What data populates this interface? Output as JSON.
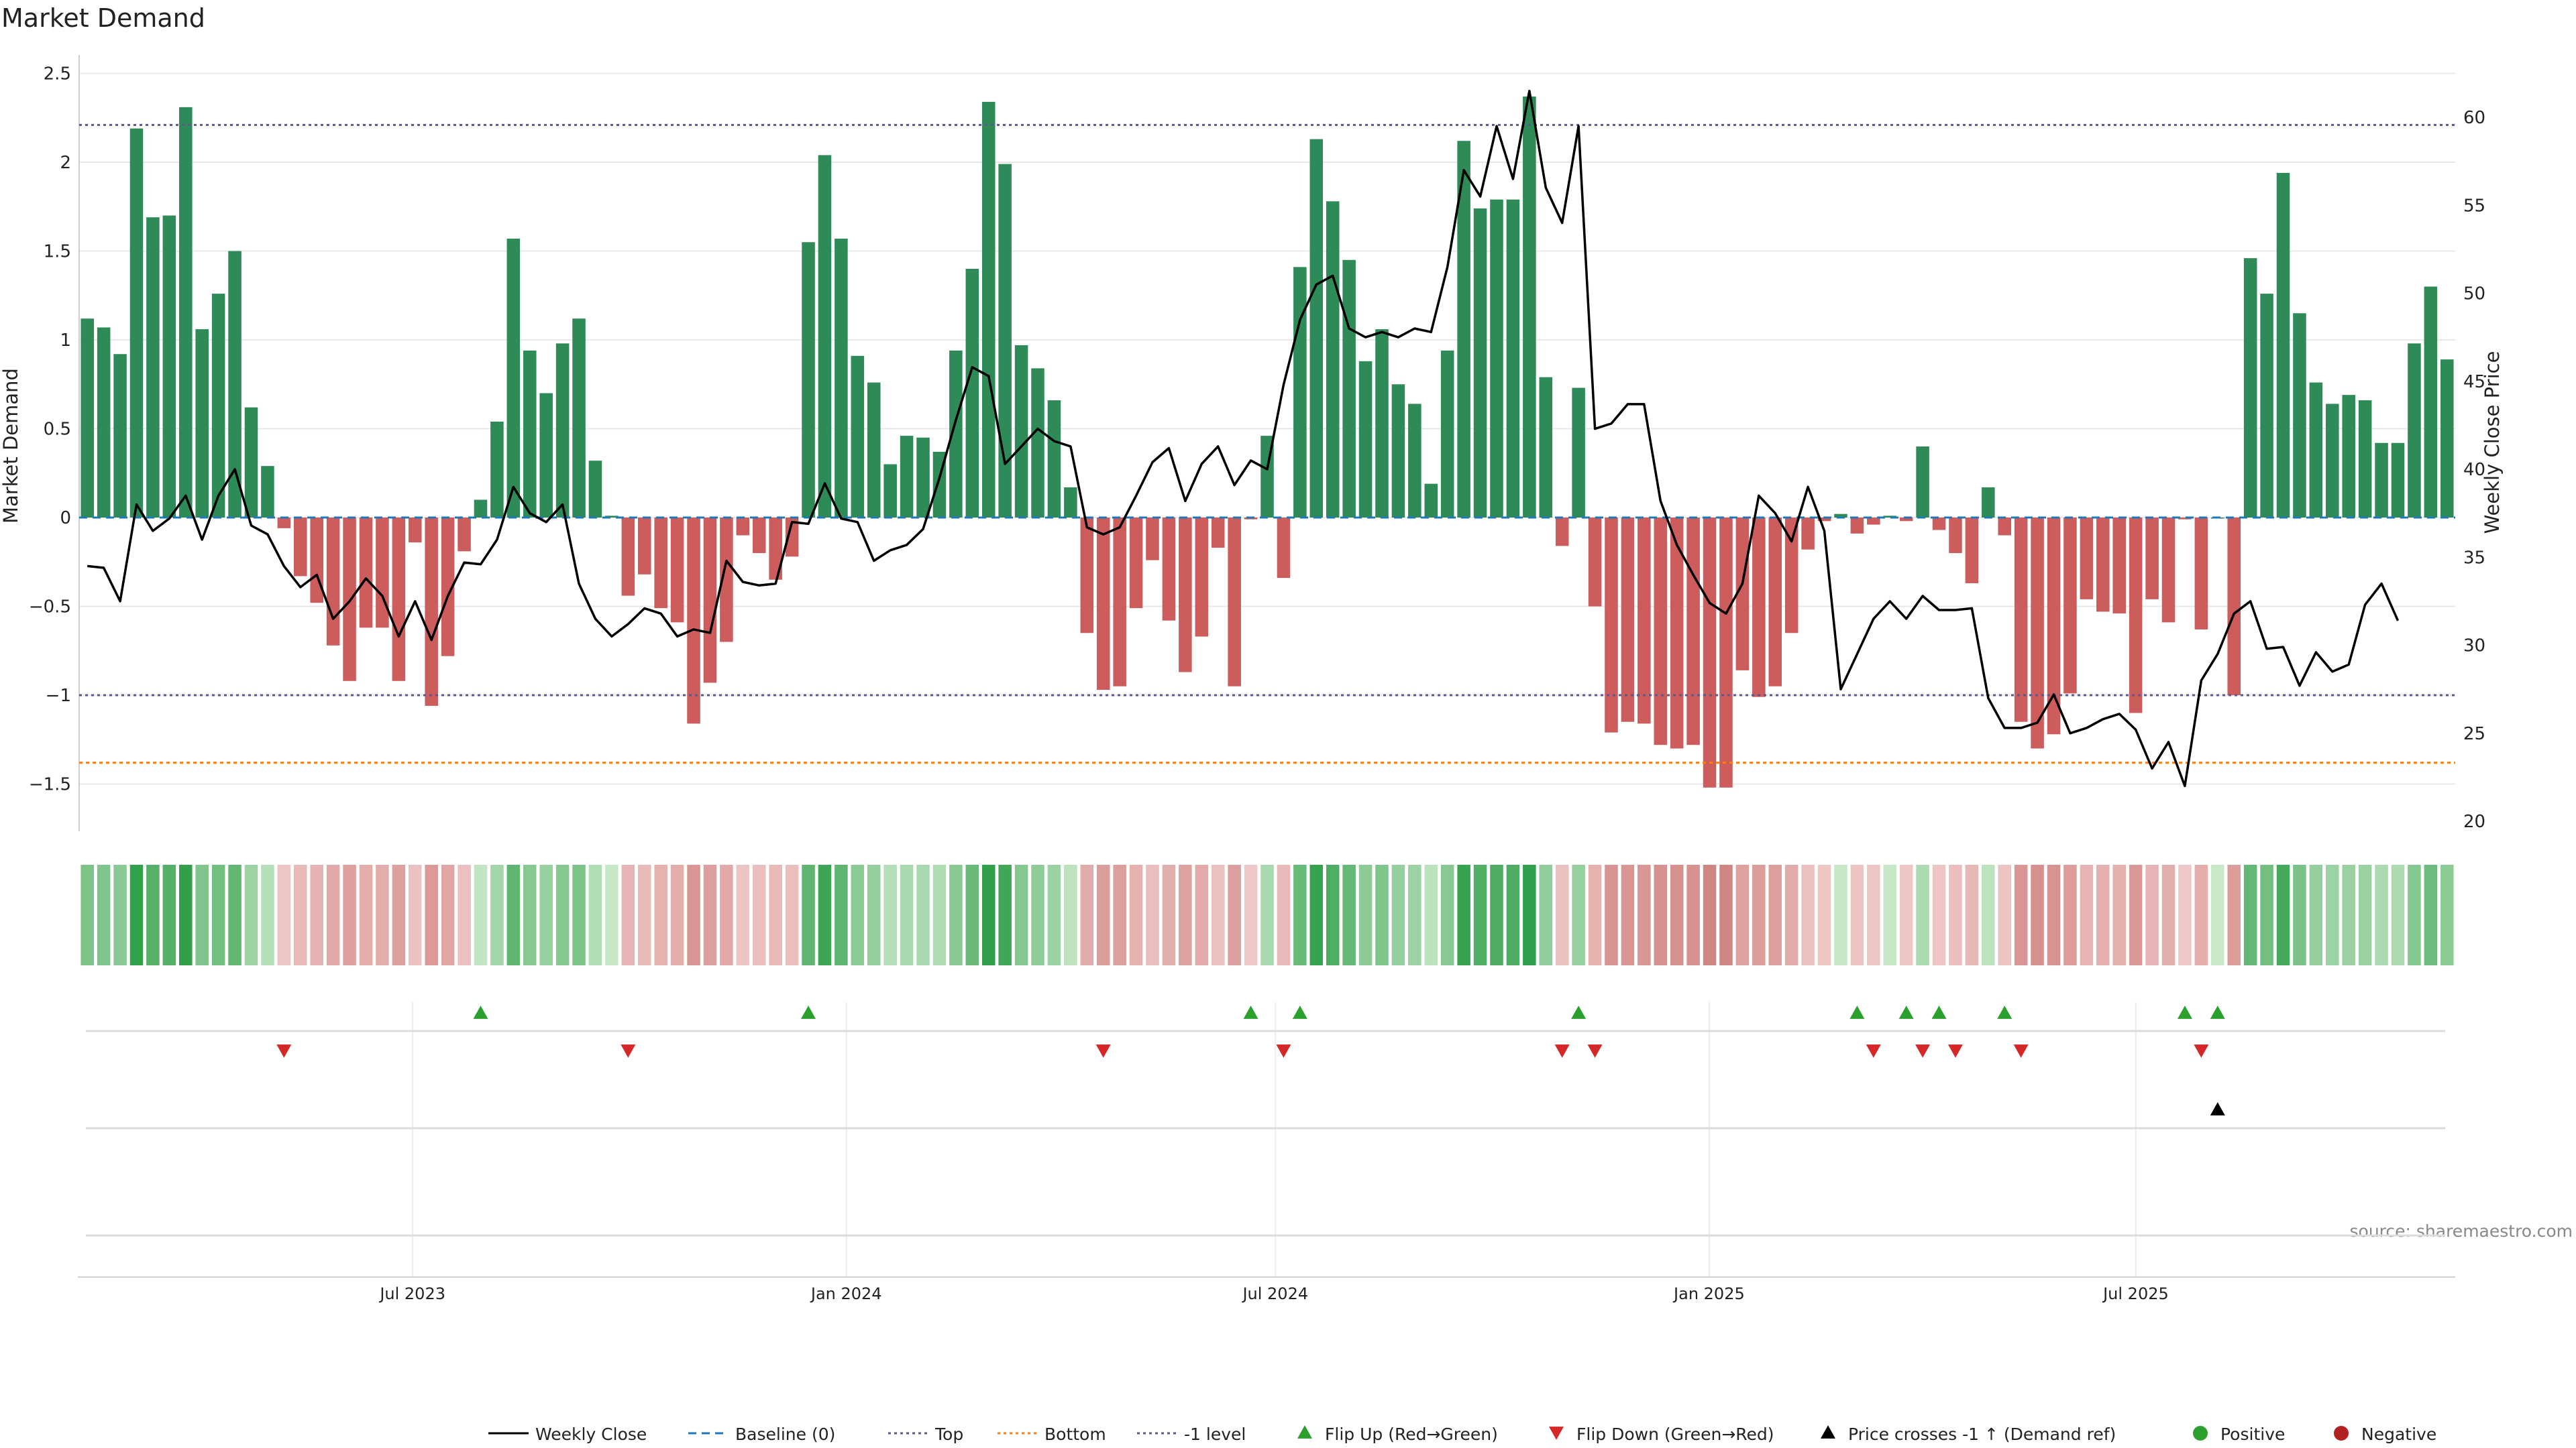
{
  "chart_data": {
    "type": "bar",
    "title": "Market Demand",
    "ylabel": "Market Demand",
    "y2label": "Weekly Close Price",
    "ylim": [
      -1.75,
      2.5
    ],
    "y2lim": [
      20,
      62
    ],
    "yticks": [
      "2.5",
      "2",
      "1.5",
      "1",
      "0.5",
      "0",
      "−0.5",
      "−1",
      "−1.5"
    ],
    "y2ticks": [
      "60",
      "55",
      "50",
      "45",
      "40",
      "35",
      "30",
      "25",
      "20"
    ],
    "x_start": "2023-02-13",
    "x_end": "2025-11-10",
    "date_ticks": [
      {
        "date": "2023-07-01",
        "label": "Jul 2023"
      },
      {
        "date": "2024-01-01",
        "label": "Jan 2024"
      },
      {
        "date": "2024-07-01",
        "label": "Jul 2024"
      },
      {
        "date": "2025-01-01",
        "label": "Jan 2025"
      },
      {
        "date": "2025-07-01",
        "label": "Jul 2025"
      }
    ],
    "reference_lines": {
      "top": 2.21,
      "minus_one": -1.0,
      "bottom": -1.38,
      "baseline": 0
    },
    "demand": [
      1.12,
      1.07,
      0.92,
      2.19,
      1.69,
      1.7,
      2.31,
      1.06,
      1.26,
      1.5,
      0.62,
      0.29,
      -0.06,
      -0.33,
      -0.48,
      -0.72,
      -0.92,
      -0.62,
      -0.62,
      -0.92,
      -0.14,
      -1.06,
      -0.78,
      -0.19,
      0.1,
      0.54,
      1.57,
      0.94,
      0.7,
      0.98,
      1.12,
      0.32,
      0.01,
      -0.44,
      -0.32,
      -0.51,
      -0.59,
      -1.16,
      -0.93,
      -0.7,
      -0.1,
      -0.2,
      -0.35,
      -0.22,
      1.55,
      2.04,
      1.57,
      0.91,
      0.76,
      0.3,
      0.46,
      0.45,
      0.37,
      0.94,
      1.4,
      2.34,
      1.99,
      0.97,
      0.84,
      0.66,
      0.17,
      -0.65,
      -0.97,
      -0.95,
      -0.51,
      -0.24,
      -0.58,
      -0.87,
      -0.67,
      -0.17,
      -0.95,
      -0.01,
      0.46,
      -0.34,
      1.41,
      2.13,
      1.78,
      1.45,
      0.88,
      1.06,
      0.75,
      0.64,
      0.19,
      0.94,
      2.12,
      1.74,
      1.79,
      1.79,
      2.37,
      0.79,
      -0.16,
      0.73,
      -0.5,
      -1.21,
      -1.15,
      -1.16,
      -1.28,
      -1.3,
      -1.28,
      -1.52,
      -1.52,
      -0.86,
      -1.01,
      -0.95,
      -0.65,
      -0.18,
      -0.02,
      0.02,
      -0.09,
      -0.04,
      0.01,
      -0.02,
      0.4,
      -0.07,
      -0.2,
      -0.37,
      0.17,
      -0.1,
      -1.15,
      -1.3,
      -1.22,
      -0.99,
      -0.46,
      -0.53,
      -0.54,
      -1.1,
      -0.46,
      -0.59,
      -0.01,
      -0.63,
      0.0,
      -1.0,
      1.46,
      1.26,
      1.94,
      1.15,
      0.76,
      0.64,
      0.69,
      0.66,
      0.42,
      0.42,
      0.98,
      1.3,
      0.89
    ],
    "weekly_close": [
      34.5,
      34.4,
      32.5,
      38.0,
      36.5,
      37.2,
      38.5,
      36.0,
      38.5,
      40.0,
      36.8,
      36.3,
      34.5,
      33.3,
      34.0,
      31.5,
      32.5,
      33.8,
      32.8,
      30.5,
      32.5,
      30.3,
      32.8,
      34.7,
      34.6,
      36.0,
      39.0,
      37.5,
      37.0,
      38.0,
      33.5,
      31.5,
      30.5,
      31.2,
      32.1,
      31.8,
      30.5,
      30.9,
      30.7,
      34.8,
      33.6,
      33.4,
      33.5,
      37.0,
      36.9,
      39.2,
      37.2,
      37.0,
      34.8,
      35.4,
      35.7,
      36.6,
      39.5,
      42.8,
      45.8,
      45.3,
      40.3,
      41.3,
      42.3,
      41.6,
      41.3,
      36.7,
      36.3,
      36.7,
      38.5,
      40.4,
      41.2,
      38.2,
      40.3,
      41.3,
      39.1,
      40.5,
      40.0,
      44.8,
      48.5,
      50.5,
      51.0,
      48.0,
      47.5,
      47.8,
      47.5,
      48.0,
      47.8,
      51.5,
      57.0,
      55.5,
      59.5,
      56.5,
      61.5,
      56.0,
      54.0,
      59.5,
      42.3,
      42.6,
      43.7,
      43.7,
      38.2,
      35.7,
      34.0,
      32.4,
      31.8,
      33.5,
      38.5,
      37.5,
      35.9,
      39.0,
      36.5,
      27.5,
      29.5,
      31.5,
      32.5,
      31.5,
      32.8,
      32.0,
      32.0,
      32.1,
      27.0,
      25.3,
      25.3,
      25.6,
      27.2,
      25.0,
      25.3,
      25.8,
      26.1,
      25.2,
      23.0,
      24.5,
      22.0,
      28.0,
      29.5,
      31.8,
      32.5,
      29.8,
      29.9,
      27.7,
      29.6,
      28.5,
      28.9,
      32.3,
      33.5,
      31.4
    ],
    "flip_up_idx": [
      24,
      44,
      71,
      74,
      91,
      108,
      111,
      113,
      117,
      128,
      130
    ],
    "flip_down_idx": [
      12,
      33,
      62,
      73,
      90,
      92,
      109,
      112,
      114,
      118,
      129
    ],
    "price_cross_idx": [
      130
    ],
    "source": "source: sharemaestro.com",
    "legend": [
      {
        "label": "Weekly Close",
        "kind": "line",
        "color": "#000000"
      },
      {
        "label": "Baseline (0)",
        "kind": "dash",
        "color": "#1f77b4"
      },
      {
        "label": "Top",
        "kind": "dot",
        "color": "#5a5a8a"
      },
      {
        "label": "Bottom",
        "kind": "dot",
        "color": "#ff7f0e"
      },
      {
        "label": "-1 level",
        "kind": "dot",
        "color": "#5a5a8a"
      },
      {
        "label": "Flip Up (Red→Green)",
        "kind": "tri-up",
        "color": "#2ca02c"
      },
      {
        "label": "Flip Down (Green→Red)",
        "kind": "tri-down",
        "color": "#d62728"
      },
      {
        "label": "Price crosses -1 ↑ (Demand ref)",
        "kind": "tri-up",
        "color": "#000000"
      },
      {
        "label": "Positive",
        "kind": "dot-marker",
        "color": "#2ca02c"
      },
      {
        "label": "Negative",
        "kind": "dot-marker",
        "color": "#b22222"
      }
    ],
    "colors": {
      "positive": "#2e8b57",
      "negative": "#cd5c5c",
      "price": "#000000",
      "grid": "#e8e8e8"
    }
  }
}
